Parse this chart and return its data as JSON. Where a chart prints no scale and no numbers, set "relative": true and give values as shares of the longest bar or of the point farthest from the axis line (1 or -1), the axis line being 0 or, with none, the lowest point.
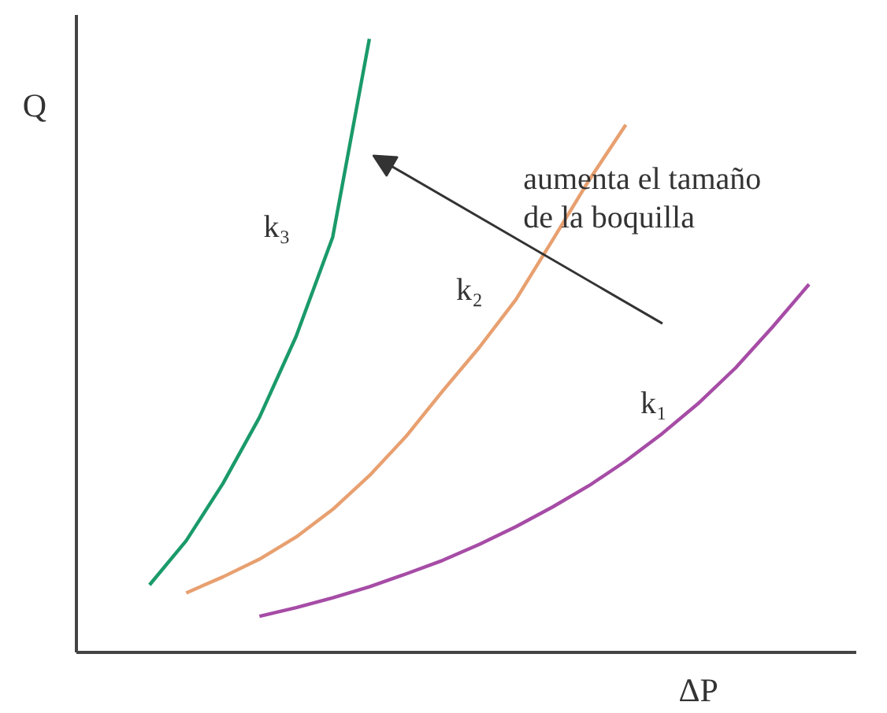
{
  "chart_data": {
    "type": "line",
    "relative": true,
    "xlabel": "ΔP",
    "ylabel": "Q",
    "grid": false,
    "marker": "none",
    "line_style": "solid",
    "categories": [
      null,
      null,
      null,
      null,
      null,
      null,
      null,
      null,
      null,
      null,
      null,
      null,
      null,
      null,
      null,
      null,
      null,
      null,
      null
    ],
    "annotations": [
      "aumenta el tamaño de la boquilla"
    ],
    "series": [
      {
        "name": "k₁",
        "color": "#a64ca6",
        "values": [
          null,
          null,
          null,
          0.059,
          0.073,
          0.089,
          0.107,
          0.128,
          0.15,
          0.176,
          0.205,
          0.237,
          0.272,
          0.312,
          0.357,
          0.407,
          0.464,
          0.53,
          0.6
        ]
      },
      {
        "name": "k₂",
        "color": "#e8a070",
        "values": [
          null,
          0.097,
          0.123,
          0.152,
          0.188,
          0.233,
          0.288,
          0.352,
          0.426,
          0.497,
          0.575,
          0.672,
          0.77,
          0.86,
          null,
          null,
          null,
          null,
          null
        ]
      },
      {
        "name": "k₃",
        "color": "#1a9a6a",
        "values": [
          0.11,
          0.182,
          0.275,
          0.383,
          0.515,
          0.677,
          1.0,
          null,
          null,
          null,
          null,
          null,
          null,
          null,
          null,
          null,
          null,
          null,
          null
        ]
      }
    ]
  }
}
